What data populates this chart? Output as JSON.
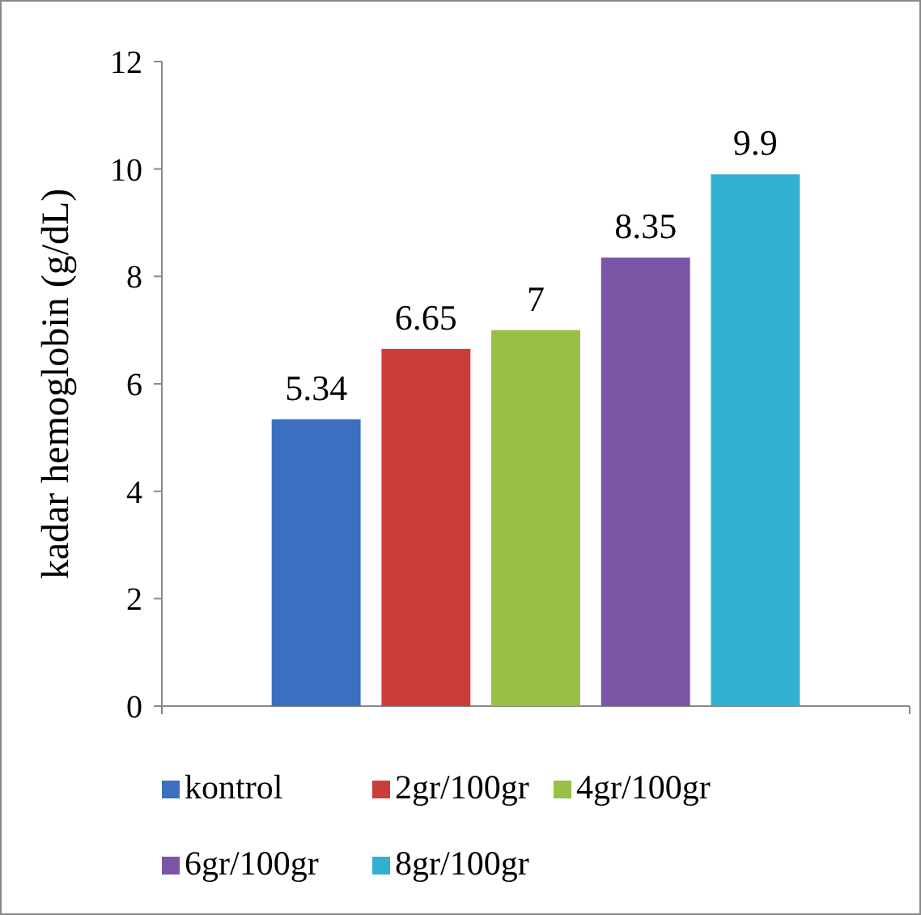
{
  "chart_data": {
    "type": "bar",
    "ylabel": "kadar hemoglobin (g/dL)",
    "categories": [
      null
    ],
    "series": [
      {
        "name": "kontrol",
        "color": "#3b6fc0",
        "values": [
          5.34
        ]
      },
      {
        "name": "2gr/100gr",
        "color": "#cc3d3a",
        "values": [
          6.65
        ]
      },
      {
        "name": "4gr/100gr",
        "color": "#97c045",
        "values": [
          7
        ]
      },
      {
        "name": "6gr/100gr",
        "color": "#7a55a6",
        "values": [
          8.35
        ]
      },
      {
        "name": "8gr/100gr",
        "color": "#30b1d0",
        "values": [
          9.9
        ]
      }
    ],
    "ylim": [
      0,
      12
    ],
    "yticks": [
      0,
      2,
      4,
      6,
      8,
      10,
      12
    ],
    "data_labels": true,
    "legend": "bottom"
  }
}
